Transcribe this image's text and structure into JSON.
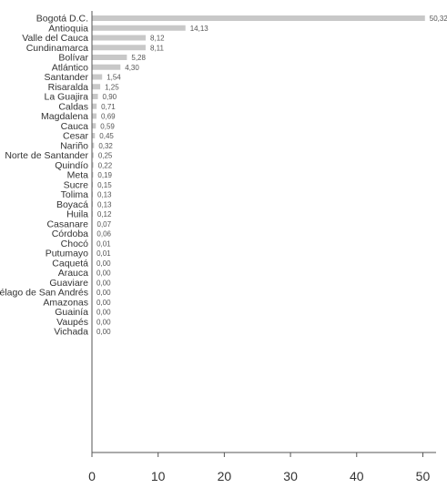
{
  "chart_data": {
    "type": "bar",
    "orientation": "horizontal",
    "title": "",
    "xlabel": "",
    "ylabel": "",
    "xlim": [
      0,
      52
    ],
    "xticks": [
      0,
      10,
      20,
      30,
      40,
      50
    ],
    "xtick_labels": [
      "0",
      "10",
      "20",
      "30",
      "40",
      "50"
    ],
    "grid": false,
    "bar_color": "#c8c8c8",
    "categories": [
      "Bogotá D.C.",
      "Antioquia",
      "Valle del Cauca",
      "Cundinamarca",
      "Bolívar",
      "Atlántico",
      "Santander",
      "Risaralda",
      "La Guajira",
      "Caldas",
      "Magdalena",
      "Cauca",
      "Cesar",
      "Nariño",
      "Norte de Santander",
      "Quindío",
      "Meta",
      "Sucre",
      "Tolima",
      "Boyacá",
      "Huila",
      "Casanare",
      "Córdoba",
      "Chocó",
      "Putumayo",
      "Caquetá",
      "Arauca",
      "Guaviare",
      "Archipiélago de San Andrés",
      "Amazonas",
      "Guainía",
      "Vaupés",
      "Vichada"
    ],
    "values": [
      50.32,
      14.13,
      8.12,
      8.11,
      5.28,
      4.3,
      1.54,
      1.25,
      0.9,
      0.71,
      0.69,
      0.59,
      0.45,
      0.32,
      0.25,
      0.22,
      0.19,
      0.15,
      0.13,
      0.13,
      0.12,
      0.07,
      0.06,
      0.01,
      0.01,
      0.0,
      0.0,
      0.0,
      0.0,
      0.0,
      0.0,
      0.0,
      0.0
    ],
    "value_labels": [
      "50,32",
      "14,13",
      "8,12",
      "8,11",
      "5,28",
      "4,30",
      "1,54",
      "1,25",
      "0,90",
      "0,71",
      "0,69",
      "0,59",
      "0,45",
      "0,32",
      "0,25",
      "0,22",
      "0,19",
      "0,15",
      "0,13",
      "0,13",
      "0,12",
      "0,07",
      "0,06",
      "0,01",
      "0,01",
      "0,00",
      "0,00",
      "0,00",
      "0,00",
      "0,00",
      "0,00",
      "0,00",
      "0,00"
    ]
  }
}
